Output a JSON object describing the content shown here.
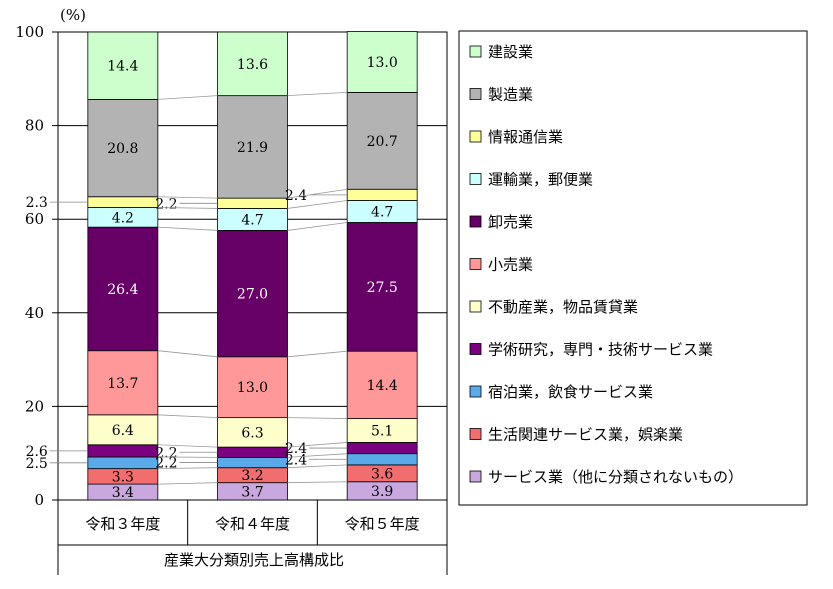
{
  "chart_data": {
    "type": "bar",
    "stacked": true,
    "percent_stacked": true,
    "unit_label": "(%)",
    "xlabel": "産業大分類別売上高構成比",
    "ylim": [
      0,
      100
    ],
    "yticks": [
      0,
      20,
      40,
      60,
      80,
      100
    ],
    "categories": [
      "令和３年度",
      "令和４年度",
      "令和５年度"
    ],
    "legend_position": "right",
    "series": [
      {
        "name": "サービス業（他に分類されないもの）",
        "color": "#c9a8e0",
        "values": [
          3.4,
          3.7,
          3.9
        ],
        "label_inside": true
      },
      {
        "name": "生活関連サービス業，娯楽業",
        "color": "#f26d6d",
        "values": [
          3.3,
          3.2,
          3.6
        ],
        "label_inside": true
      },
      {
        "name": "宿泊業，飲食サービス業",
        "color": "#5aa9e8",
        "values": [
          2.5,
          2.2,
          2.4
        ],
        "label_inside": false
      },
      {
        "name": "学術研究，専門・技術サービス業",
        "color": "#7a0080",
        "values": [
          2.6,
          2.2,
          2.4
        ],
        "label_inside": false
      },
      {
        "name": "不動産業，物品賃貸業",
        "color": "#ffffcc",
        "values": [
          6.4,
          6.3,
          5.1
        ],
        "label_inside": true
      },
      {
        "name": "小売業",
        "color": "#ff9999",
        "values": [
          13.7,
          13.0,
          14.4
        ],
        "label_inside": true
      },
      {
        "name": "卸売業",
        "color": "#660066",
        "values": [
          26.4,
          27.0,
          27.5
        ],
        "label_inside": true,
        "light_text": true
      },
      {
        "name": "運輸業，郵便業",
        "color": "#ccffff",
        "values": [
          4.2,
          4.7,
          4.7
        ],
        "label_inside": true
      },
      {
        "name": "情報通信業",
        "color": "#ffff99",
        "values": [
          2.3,
          2.2,
          2.4
        ],
        "label_inside": false
      },
      {
        "name": "製造業",
        "color": "#b3b3b3",
        "values": [
          20.8,
          21.9,
          20.7
        ],
        "label_inside": true
      },
      {
        "name": "建設業",
        "color": "#ccffcc",
        "values": [
          14.4,
          13.6,
          13.0
        ],
        "label_inside": true
      }
    ],
    "legend_order": [
      "建設業",
      "製造業",
      "情報通信業",
      "運輸業，郵便業",
      "卸売業",
      "小売業",
      "不動産業，物品賃貸業",
      "学術研究，専門・技術サービス業",
      "宿泊業，飲食サービス業",
      "生活関連サービス業，娯楽業",
      "サービス業（他に分類されないもの）"
    ]
  }
}
